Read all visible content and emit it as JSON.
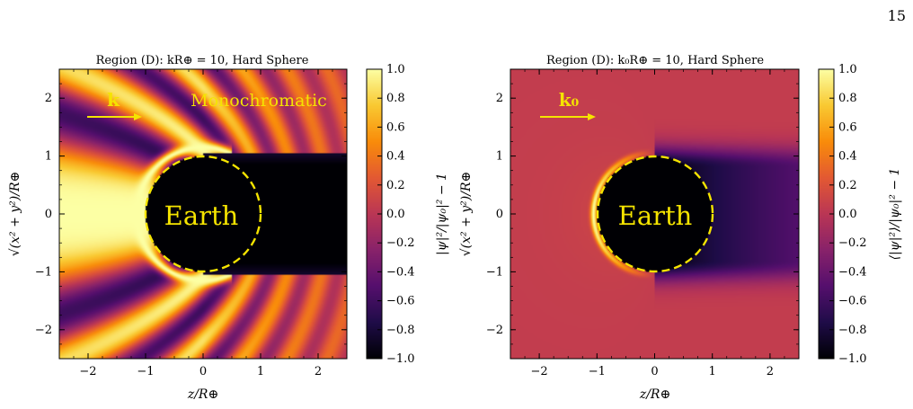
{
  "page_number": "15",
  "colors": {
    "colormap": [
      "#000004",
      "#1f0c48",
      "#550f6d",
      "#88226a",
      "#ba3655",
      "#e35933",
      "#f98c0a",
      "#f9c932",
      "#fcffa4"
    ],
    "annotation": "#f5e400",
    "field_uniform": "#cc4a4a"
  },
  "chart_data": [
    {
      "type": "heatmap",
      "panel": "left",
      "title": "Region (D): kR⊕ = 10, Hard Sphere",
      "xlabel": "z/R⊕",
      "ylabel": "√(x² + y²)/R⊕",
      "xlim": [
        -2.5,
        2.5
      ],
      "ylim": [
        -2.5,
        2.5
      ],
      "xticks": [
        "−2",
        "−1",
        "0",
        "1",
        "2"
      ],
      "yticks": [
        "−2",
        "−1",
        "0",
        "1",
        "2"
      ],
      "colorbar": {
        "label": "|ψ|²/|ψ₀|² − 1",
        "range": [
          -1.0,
          1.0
        ],
        "ticks": [
          "1.0",
          "0.8",
          "0.6",
          "0.4",
          "0.2",
          "0.0",
          "−0.2",
          "−0.4",
          "−0.6",
          "−0.8",
          "−1.0"
        ]
      },
      "annotations": {
        "wave_vector": "k",
        "spectrum": "Monochromatic",
        "body": "Earth"
      },
      "sphere": {
        "center": [
          0,
          0
        ],
        "radius": 1.0
      },
      "kR": 10,
      "grid": false
    },
    {
      "type": "heatmap",
      "panel": "right",
      "title": "Region (D): k₀R⊕ = 10, Hard Sphere",
      "xlabel": "z/R⊕",
      "ylabel": "√(x² + y²)/R⊕",
      "xlim": [
        -2.5,
        2.5
      ],
      "ylim": [
        -2.5,
        2.5
      ],
      "xticks": [
        "−2",
        "−1",
        "0",
        "1",
        "2"
      ],
      "yticks": [
        "−2",
        "−1",
        "0",
        "1",
        "2"
      ],
      "colorbar": {
        "label": "⟨|ψ|²⟩/|ψ₀|² − 1",
        "range": [
          -1.0,
          1.0
        ],
        "ticks": [
          "1.0",
          "0.8",
          "0.6",
          "0.4",
          "0.2",
          "0.0",
          "−0.2",
          "−0.4",
          "−0.6",
          "−0.8",
          "−1.0"
        ]
      },
      "annotations": {
        "wave_vector": "k₀",
        "body": "Earth"
      },
      "sphere": {
        "center": [
          0,
          0
        ],
        "radius": 1.0
      },
      "background_value": 0.05,
      "grid": false
    }
  ]
}
